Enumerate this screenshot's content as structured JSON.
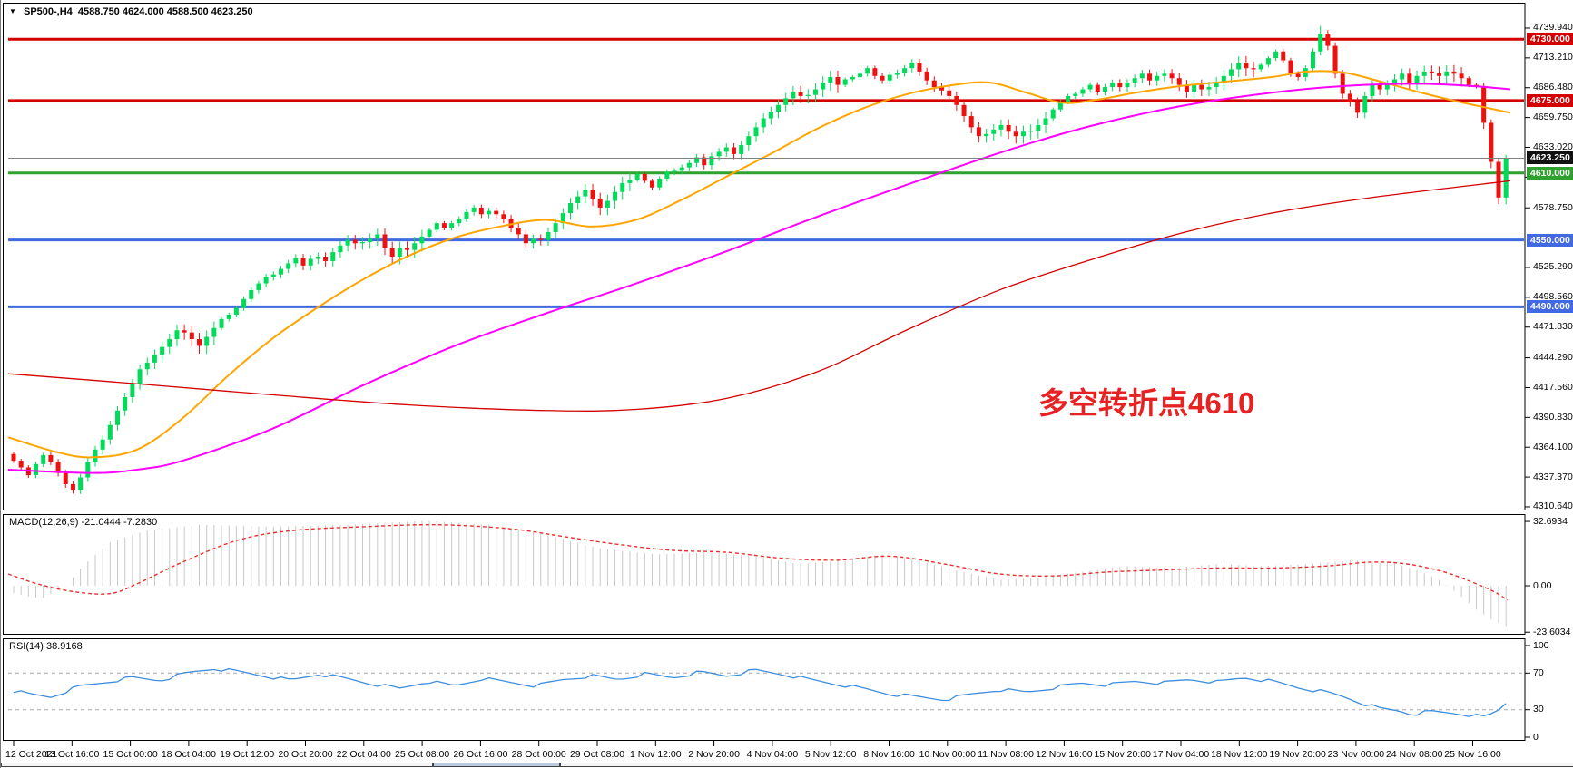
{
  "header": {
    "dropdown_icon": "▼",
    "symbol": "SP500-,H4",
    "ohlc": "4588.750 4624.000 4588.500 4623.250"
  },
  "annotation": {
    "text": "多空转折点4610"
  },
  "colors": {
    "up": "#00DC5A",
    "down": "#EF1010",
    "ma_fast": "#FFA500",
    "ma_mid": "#FF00FF",
    "ma_slow": "#D40000",
    "level_red": "#D40000",
    "level_blue": "#4169E1",
    "level_green": "#2EA12E",
    "current_price_line": "#808080",
    "badge_black": "#111111",
    "macd_hist": "#C8C8C8",
    "macd_signal": "#E83030",
    "rsi_line": "#3E8EDE",
    "grid_dashed": "#ABABAB",
    "annotation": "#E62222",
    "pane_border": "#000000"
  },
  "price_scale": {
    "ticks": [
      {
        "label": "4739.940",
        "price": 4739.94
      },
      {
        "label": "4713.210",
        "price": 4713.21
      },
      {
        "label": "4686.480",
        "price": 4686.48
      },
      {
        "label": "4659.750",
        "price": 4659.75
      },
      {
        "label": "4633.020",
        "price": 4633.02
      },
      {
        "label": "4606.290",
        "price": 4606.29
      },
      {
        "label": "4578.750",
        "price": 4578.75
      },
      {
        "label": "4525.290",
        "price": 4525.29
      },
      {
        "label": "4498.560",
        "price": 4498.56
      },
      {
        "label": "4471.830",
        "price": 4471.83
      },
      {
        "label": "4444.290",
        "price": 4444.29
      },
      {
        "label": "4417.560",
        "price": 4417.56
      },
      {
        "label": "4390.830",
        "price": 4390.83
      },
      {
        "label": "4364.100",
        "price": 4364.1
      },
      {
        "label": "4337.370",
        "price": 4337.37
      },
      {
        "label": "4310.640",
        "price": 4310.64
      }
    ],
    "badges": [
      {
        "label": "4730.000",
        "price": 4730.0,
        "bg": "#D40000"
      },
      {
        "label": "4675.000",
        "price": 4675.0,
        "bg": "#D40000"
      },
      {
        "label": "4623.250",
        "price": 4623.25,
        "bg": "#111111"
      },
      {
        "label": "4610.000",
        "price": 4610.0,
        "bg": "#2EA12E"
      },
      {
        "label": "4550.000",
        "price": 4550.0,
        "bg": "#4169E1"
      },
      {
        "label": "4490.000",
        "price": 4490.0,
        "bg": "#4169E1"
      }
    ]
  },
  "macd_pane": {
    "label": "MACD(12,26,9) -21.0444 -7.2830",
    "scale": [
      {
        "label": "32.6934",
        "v": 32.6934
      },
      {
        "label": "0.00",
        "v": 0
      },
      {
        "label": "-23.6034",
        "v": -23.6034
      }
    ]
  },
  "rsi_pane": {
    "label": "RSI(14) 38.9168",
    "scale": [
      {
        "label": "100",
        "v": 100
      },
      {
        "label": "70",
        "v": 70
      },
      {
        "label": "30",
        "v": 30
      },
      {
        "label": "0",
        "v": 0
      }
    ]
  },
  "time_axis": {
    "labels": [
      "12 Oct 2021",
      "13 Oct 16:00",
      "15 Oct 00:00",
      "18 Oct 04:00",
      "19 Oct 12:00",
      "20 Oct 20:00",
      "22 Oct 04:00",
      "25 Oct 08:00",
      "26 Oct 16:00",
      "28 Oct 00:00",
      "29 Oct 08:00",
      "1 Nov 12:00",
      "2 Nov 20:00",
      "4 Nov 04:00",
      "5 Nov 12:00",
      "8 Nov 16:00",
      "10 Nov 00:00",
      "11 Nov 08:00",
      "12 Nov 16:00",
      "15 Nov 20:00",
      "17 Nov 04:00",
      "18 Nov 12:00",
      "19 Nov 20:00",
      "23 Nov 00:00",
      "24 Nov 08:00",
      "25 Nov 16:00"
    ]
  },
  "chart_data": {
    "type": "candlestick",
    "symbol": "SP500-,H4",
    "timeframe": "H4",
    "current_bar": {
      "open": 4588.75,
      "high": 4624.0,
      "low": 4588.5,
      "close": 4623.25
    },
    "price_axis_range": [
      4310.64,
      4739.94
    ],
    "closes": [
      4352,
      4346,
      4339,
      4349,
      4357,
      4351,
      4341,
      4331,
      4326,
      4337,
      4351,
      4362,
      4371,
      4384,
      4397,
      4409,
      4421,
      4434,
      4440,
      4447,
      4454,
      4461,
      4469,
      4467,
      4461,
      4455,
      4463,
      4471,
      4479,
      4483,
      4489,
      4497,
      4505,
      4511,
      4517,
      4519,
      4524,
      4529,
      4534,
      4527,
      4533,
      4535,
      4531,
      4539,
      4545,
      4550,
      4547,
      4548,
      4551,
      4555,
      4543,
      4535,
      4543,
      4541,
      4547,
      4553,
      4559,
      4565,
      4561,
      4565,
      4569,
      4575,
      4579,
      4573,
      4576,
      4573,
      4569,
      4561,
      4555,
      4547,
      4551,
      4550,
      4557,
      4565,
      4574,
      4583,
      4589,
      4595,
      4587,
      4579,
      4585,
      4593,
      4601,
      4604,
      4609,
      4603,
      4597,
      4605,
      4611,
      4612,
      4615,
      4619,
      4624,
      4617,
      4625,
      4629,
      4633,
      4627,
      4635,
      4643,
      4651,
      4659,
      4665,
      4671,
      4677,
      4683,
      4679,
      4680,
      4685,
      4691,
      4696,
      4689,
      4694,
      4696,
      4699,
      4704,
      4697,
      4693,
      4698,
      4700,
      4704,
      4709,
      4701,
      4693,
      4687,
      4684,
      4679,
      4671,
      4661,
      4651,
      4643,
      4645,
      4649,
      4653,
      4647,
      4643,
      4647,
      4648,
      4653,
      4659,
      4667,
      4674,
      4679,
      4681,
      4685,
      4689,
      4683,
      4687,
      4691,
      4687,
      4691,
      4695,
      4699,
      4693,
      4697,
      4699,
      4695,
      4689,
      4683,
      4689,
      4685,
      4687,
      4691,
      4697,
      4703,
      4709,
      4704,
      4703,
      4707,
      4713,
      4719,
      4711,
      4699,
      4696,
      4704,
      4719,
      4735,
      4724,
      4699,
      4681,
      4674,
      4664,
      4679,
      4689,
      4685,
      4689,
      4694,
      4699,
      4691,
      4697,
      4701,
      4700,
      4697,
      4701,
      4699,
      4695,
      4689,
      4688,
      4655,
      4620,
      4588,
      4623
    ],
    "horizontal_levels": [
      {
        "price": 4730.0,
        "color": "#D40000",
        "width": 3
      },
      {
        "price": 4675.0,
        "color": "#D40000",
        "width": 3
      },
      {
        "price": 4623.25,
        "color": "#808080",
        "width": 1
      },
      {
        "price": 4610.0,
        "color": "#2EA12E",
        "width": 3
      },
      {
        "price": 4550.0,
        "color": "#4169E1",
        "width": 3
      },
      {
        "price": 4490.0,
        "color": "#4169E1",
        "width": 3
      }
    ],
    "moving_averages": [
      {
        "name": "ma-fast",
        "color_key": "ma_fast",
        "points": [
          [
            8,
            4373
          ],
          [
            60,
            4360
          ],
          [
            100,
            4355
          ],
          [
            150,
            4362
          ],
          [
            200,
            4390
          ],
          [
            250,
            4428
          ],
          [
            300,
            4462
          ],
          [
            350,
            4490
          ],
          [
            400,
            4515
          ],
          [
            450,
            4536
          ],
          [
            500,
            4552
          ],
          [
            550,
            4562
          ],
          [
            600,
            4568
          ],
          [
            650,
            4562
          ],
          [
            700,
            4568
          ],
          [
            750,
            4586
          ],
          [
            800,
            4607
          ],
          [
            850,
            4628
          ],
          [
            900,
            4650
          ],
          [
            950,
            4668
          ],
          [
            1000,
            4681
          ],
          [
            1050,
            4689
          ],
          [
            1090,
            4691
          ],
          [
            1130,
            4682
          ],
          [
            1170,
            4673
          ],
          [
            1210,
            4676
          ],
          [
            1250,
            4682
          ],
          [
            1300,
            4688
          ],
          [
            1350,
            4692
          ],
          [
            1400,
            4696
          ],
          [
            1440,
            4701
          ],
          [
            1480,
            4700
          ],
          [
            1520,
            4692
          ],
          [
            1560,
            4683
          ],
          [
            1600,
            4675
          ],
          [
            1640,
            4668
          ],
          [
            1663,
            4664
          ]
        ]
      },
      {
        "name": "ma-mid",
        "color_key": "ma_mid",
        "points": [
          [
            8,
            4344
          ],
          [
            100,
            4341
          ],
          [
            150,
            4344
          ],
          [
            200,
            4352
          ],
          [
            300,
            4381
          ],
          [
            400,
            4420
          ],
          [
            500,
            4455
          ],
          [
            600,
            4484
          ],
          [
            700,
            4511
          ],
          [
            800,
            4540
          ],
          [
            900,
            4571
          ],
          [
            1000,
            4600
          ],
          [
            1100,
            4628
          ],
          [
            1200,
            4652
          ],
          [
            1300,
            4670
          ],
          [
            1400,
            4682
          ],
          [
            1480,
            4688
          ],
          [
            1560,
            4690
          ],
          [
            1620,
            4688
          ],
          [
            1663,
            4685
          ]
        ]
      },
      {
        "name": "ma-slow",
        "color_key": "ma_slow",
        "points": [
          [
            8,
            4430
          ],
          [
            150,
            4421
          ],
          [
            300,
            4411
          ],
          [
            450,
            4402
          ],
          [
            600,
            4397
          ],
          [
            700,
            4398
          ],
          [
            800,
            4408
          ],
          [
            900,
            4432
          ],
          [
            1000,
            4470
          ],
          [
            1100,
            4505
          ],
          [
            1200,
            4532
          ],
          [
            1300,
            4556
          ],
          [
            1400,
            4574
          ],
          [
            1510,
            4588
          ],
          [
            1663,
            4603
          ]
        ]
      }
    ],
    "macd": {
      "params": "12,26,9",
      "value": -21.0444,
      "signal_value": -7.283,
      "ylim": [
        -23.6034,
        32.6934
      ],
      "hist_waypoints": [
        [
          8,
          -3
        ],
        [
          25,
          -5
        ],
        [
          45,
          -6.5
        ],
        [
          60,
          -3
        ],
        [
          72,
          0
        ],
        [
          90,
          10
        ],
        [
          120,
          22
        ],
        [
          160,
          28
        ],
        [
          220,
          31
        ],
        [
          300,
          30
        ],
        [
          380,
          31
        ],
        [
          470,
          33
        ],
        [
          540,
          31
        ],
        [
          600,
          26
        ],
        [
          660,
          19
        ],
        [
          720,
          16
        ],
        [
          780,
          17
        ],
        [
          830,
          15
        ],
        [
          880,
          11
        ],
        [
          930,
          13
        ],
        [
          970,
          16
        ],
        [
          1010,
          13
        ],
        [
          1060,
          7
        ],
        [
          1100,
          3
        ],
        [
          1140,
          4
        ],
        [
          1190,
          7
        ],
        [
          1240,
          10
        ],
        [
          1290,
          9
        ],
        [
          1340,
          11
        ],
        [
          1390,
          10
        ],
        [
          1440,
          11
        ],
        [
          1490,
          13
        ],
        [
          1530,
          12
        ],
        [
          1560,
          8
        ],
        [
          1585,
          3
        ],
        [
          1605,
          -4
        ],
        [
          1625,
          -12
        ],
        [
          1645,
          -18
        ],
        [
          1660,
          -21
        ]
      ],
      "signal_waypoints": [
        [
          8,
          6
        ],
        [
          40,
          1
        ],
        [
          80,
          -3
        ],
        [
          120,
          -4
        ],
        [
          150,
          1
        ],
        [
          200,
          12
        ],
        [
          260,
          23
        ],
        [
          320,
          28
        ],
        [
          400,
          30
        ],
        [
          480,
          31
        ],
        [
          560,
          29
        ],
        [
          620,
          25
        ],
        [
          680,
          21
        ],
        [
          740,
          18
        ],
        [
          800,
          17
        ],
        [
          860,
          14
        ],
        [
          920,
          13
        ],
        [
          980,
          15
        ],
        [
          1040,
          11
        ],
        [
          1100,
          6
        ],
        [
          1160,
          5
        ],
        [
          1220,
          7
        ],
        [
          1280,
          8
        ],
        [
          1340,
          9
        ],
        [
          1400,
          9
        ],
        [
          1460,
          10
        ],
        [
          1510,
          12
        ],
        [
          1550,
          11
        ],
        [
          1590,
          7
        ],
        [
          1620,
          2
        ],
        [
          1645,
          -3
        ],
        [
          1660,
          -7.3
        ]
      ]
    },
    "rsi": {
      "period": 14,
      "value": 38.9168,
      "levels": [
        70,
        30
      ],
      "waypoints": [
        [
          8,
          52
        ],
        [
          30,
          47
        ],
        [
          55,
          44
        ],
        [
          85,
          55
        ],
        [
          115,
          60
        ],
        [
          145,
          65
        ],
        [
          175,
          62
        ],
        [
          205,
          70
        ],
        [
          235,
          75
        ],
        [
          265,
          71
        ],
        [
          290,
          67
        ],
        [
          320,
          62
        ],
        [
          350,
          69
        ],
        [
          380,
          64
        ],
        [
          410,
          58
        ],
        [
          440,
          53
        ],
        [
          470,
          61
        ],
        [
          500,
          56
        ],
        [
          530,
          64
        ],
        [
          560,
          60
        ],
        [
          590,
          56
        ],
        [
          620,
          63
        ],
        [
          650,
          67
        ],
        [
          680,
          63
        ],
        [
          710,
          69
        ],
        [
          740,
          65
        ],
        [
          770,
          71
        ],
        [
          800,
          67
        ],
        [
          830,
          73
        ],
        [
          860,
          69
        ],
        [
          890,
          63
        ],
        [
          920,
          58
        ],
        [
          950,
          53
        ],
        [
          980,
          47
        ],
        [
          1010,
          44
        ],
        [
          1040,
          41
        ],
        [
          1070,
          47
        ],
        [
          1100,
          52
        ],
        [
          1130,
          49
        ],
        [
          1160,
          54
        ],
        [
          1190,
          59
        ],
        [
          1220,
          57
        ],
        [
          1250,
          61
        ],
        [
          1280,
          59
        ],
        [
          1310,
          63
        ],
        [
          1340,
          60
        ],
        [
          1370,
          65
        ],
        [
          1400,
          61
        ],
        [
          1430,
          54
        ],
        [
          1460,
          49
        ],
        [
          1480,
          44
        ],
        [
          1500,
          37
        ],
        [
          1520,
          31
        ],
        [
          1540,
          29
        ],
        [
          1555,
          25
        ],
        [
          1575,
          28
        ],
        [
          1590,
          27
        ],
        [
          1605,
          26
        ],
        [
          1620,
          24
        ],
        [
          1635,
          22
        ],
        [
          1648,
          28
        ],
        [
          1660,
          39
        ]
      ]
    }
  }
}
